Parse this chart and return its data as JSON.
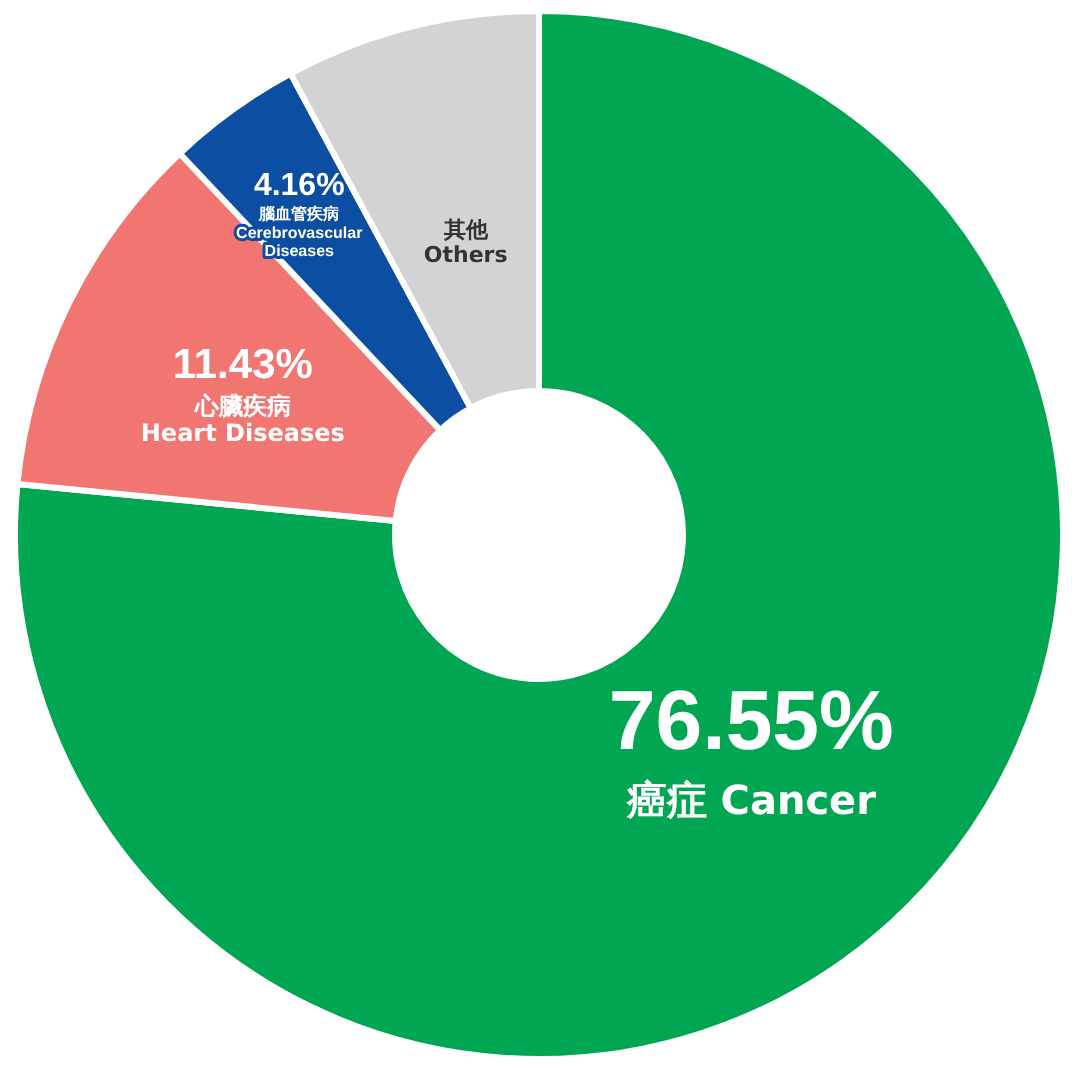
{
  "chart_data": {
    "type": "donut",
    "categories": [
      "癌症 Cancer",
      "心臟疾病 Heart Diseases",
      "腦血管疾病 Cerebrovascular Diseases",
      "其他 Others"
    ],
    "values": [
      76.55,
      11.43,
      4.16,
      7.86
    ],
    "colors": [
      "#00a651",
      "#f17571",
      "#0b4ea2",
      "#d3d3d5"
    ],
    "value_labels": [
      "76.55%",
      "11.43%",
      "4.16%",
      null
    ]
  }
}
